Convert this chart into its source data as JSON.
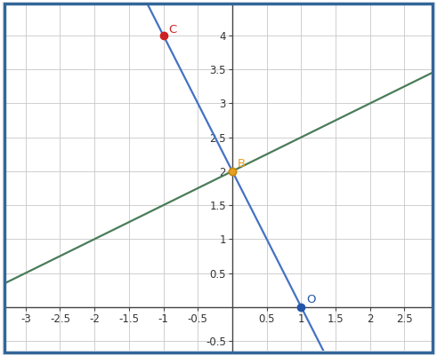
{
  "xlim": [
    -3.3,
    2.9
  ],
  "ylim": [
    -0.65,
    4.45
  ],
  "xticks": [
    -3,
    -2.5,
    -2,
    -1.5,
    -1,
    -0.5,
    0.5,
    1,
    1.5,
    2,
    2.5
  ],
  "yticks": [
    -0.5,
    0.5,
    1,
    1.5,
    2,
    2.5,
    3,
    3.5,
    4
  ],
  "xtick_labels": [
    "-3",
    "-2.5",
    "-2",
    "-1.5",
    "-1",
    "-0.5",
    "0.5",
    "1",
    "1.5",
    "2",
    "2.5"
  ],
  "ytick_labels": [
    "-0.5",
    "0.5",
    "1",
    "1.5",
    "2",
    "2.5",
    "3",
    "3.5",
    "4"
  ],
  "blue_line_slope": -2,
  "blue_line_intercept": 2,
  "green_line_slope": 0.5,
  "green_line_intercept": 2,
  "point_C": [
    -1,
    4
  ],
  "point_B": [
    0,
    2
  ],
  "point_O": [
    1,
    0
  ],
  "point_C_color": "#cc2222",
  "point_B_color": "#e8a020",
  "point_O_color": "#2255aa",
  "blue_line_color": "#4472c4",
  "green_line_color": "#4a7c59",
  "label_C": "C",
  "label_B": "B",
  "label_O": "O",
  "grid_color": "#c8c8c8",
  "background_color": "#f0f4f8",
  "border_color": "#336699",
  "axis_color": "#444444",
  "axis_label_fontsize": 8.5,
  "point_label_fontsize": 9.5
}
